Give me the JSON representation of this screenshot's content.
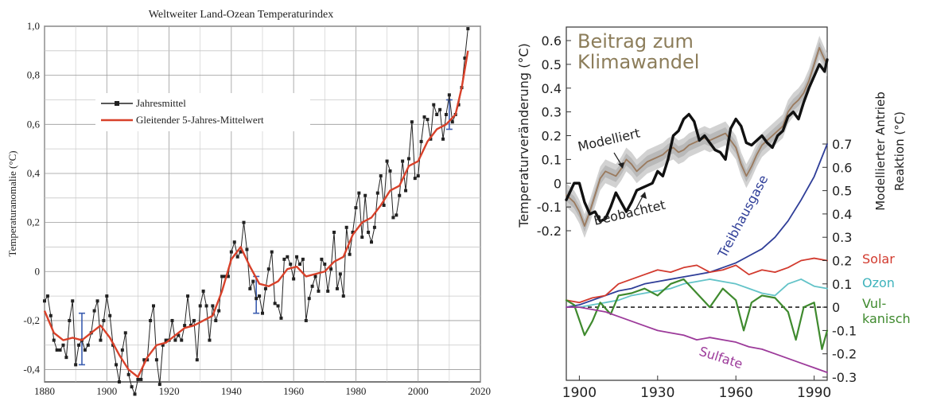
{
  "chart_data": [
    {
      "type": "line",
      "title": "Weltweiter Land-Ozean Temperaturindex",
      "xlabel": "",
      "ylabel": "Temperaturanomalie (°C)",
      "xlim": [
        1880,
        2020
      ],
      "ylim": [
        -0.45,
        1.0
      ],
      "grid": true,
      "legend_position": "top-left",
      "x_ticks": [
        1880,
        1900,
        1920,
        1940,
        1960,
        1980,
        2000,
        2020
      ],
      "x_tick_labels": [
        "1880",
        "1900",
        "1920",
        "1940",
        "1960",
        "1980",
        "2000",
        "2020"
      ],
      "y_ticks": [
        -0.4,
        -0.2,
        0,
        0.2,
        0.4,
        0.6,
        0.8,
        1.0
      ],
      "y_tick_labels": [
        "-0,4",
        "-0,2",
        "0",
        "0,2",
        "0,4",
        "0,6",
        "0,8",
        "1,0"
      ],
      "colors": {
        "annual": "#222222",
        "smooth": "#d8412a",
        "error": "#3b5db0"
      },
      "series": [
        {
          "name": "Jahresmittel",
          "x": [
            1880,
            1881,
            1882,
            1883,
            1884,
            1885,
            1886,
            1887,
            1888,
            1889,
            1890,
            1891,
            1892,
            1893,
            1894,
            1895,
            1896,
            1897,
            1898,
            1899,
            1900,
            1901,
            1902,
            1903,
            1904,
            1905,
            1906,
            1907,
            1908,
            1909,
            1910,
            1911,
            1912,
            1913,
            1914,
            1915,
            1916,
            1917,
            1918,
            1919,
            1920,
            1921,
            1922,
            1923,
            1924,
            1925,
            1926,
            1927,
            1928,
            1929,
            1930,
            1931,
            1932,
            1933,
            1934,
            1935,
            1936,
            1937,
            1938,
            1939,
            1940,
            1941,
            1942,
            1943,
            1944,
            1945,
            1946,
            1947,
            1948,
            1949,
            1950,
            1951,
            1952,
            1953,
            1954,
            1955,
            1956,
            1957,
            1958,
            1959,
            1960,
            1961,
            1962,
            1963,
            1964,
            1965,
            1966,
            1967,
            1968,
            1969,
            1970,
            1971,
            1972,
            1973,
            1974,
            1975,
            1976,
            1977,
            1978,
            1979,
            1980,
            1981,
            1982,
            1983,
            1984,
            1985,
            1986,
            1987,
            1988,
            1989,
            1990,
            1991,
            1992,
            1993,
            1994,
            1995,
            1996,
            1997,
            1998,
            1999,
            2000,
            2001,
            2002,
            2003,
            2004,
            2005,
            2006,
            2007,
            2008,
            2009,
            2010,
            2011,
            2012,
            2013,
            2014,
            2015,
            2016
          ],
          "values": [
            -0.12,
            -0.1,
            -0.18,
            -0.28,
            -0.32,
            -0.32,
            -0.3,
            -0.35,
            -0.2,
            -0.12,
            -0.38,
            -0.3,
            -0.28,
            -0.32,
            -0.3,
            -0.25,
            -0.16,
            -0.12,
            -0.28,
            -0.2,
            -0.1,
            -0.18,
            -0.3,
            -0.38,
            -0.45,
            -0.32,
            -0.25,
            -0.42,
            -0.47,
            -0.5,
            -0.44,
            -0.44,
            -0.36,
            -0.36,
            -0.2,
            -0.14,
            -0.36,
            -0.46,
            -0.3,
            -0.28,
            -0.28,
            -0.2,
            -0.28,
            -0.26,
            -0.28,
            -0.22,
            -0.1,
            -0.22,
            -0.2,
            -0.36,
            -0.14,
            -0.08,
            -0.14,
            -0.28,
            -0.14,
            -0.2,
            -0.16,
            -0.02,
            -0.02,
            -0.02,
            0.08,
            0.12,
            0.06,
            0.08,
            0.2,
            0.09,
            -0.07,
            -0.04,
            -0.11,
            -0.1,
            -0.17,
            -0.07,
            0.01,
            0.08,
            -0.13,
            -0.14,
            -0.19,
            0.05,
            0.06,
            0.03,
            -0.03,
            0.06,
            0.03,
            0.05,
            -0.2,
            -0.11,
            -0.06,
            -0.02,
            -0.08,
            0.05,
            0.03,
            -0.08,
            0.01,
            0.16,
            -0.07,
            -0.01,
            -0.1,
            0.18,
            0.07,
            0.16,
            0.26,
            0.32,
            0.14,
            0.31,
            0.16,
            0.12,
            0.18,
            0.32,
            0.39,
            0.27,
            0.45,
            0.41,
            0.22,
            0.23,
            0.31,
            0.45,
            0.33,
            0.46,
            0.61,
            0.38,
            0.39,
            0.53,
            0.63,
            0.62,
            0.54,
            0.68,
            0.64,
            0.66,
            0.54,
            0.64,
            0.72,
            0.61,
            0.64,
            0.68,
            0.75,
            0.87,
            0.99
          ]
        },
        {
          "name": "Gleitender 5-Jahres-Mittelwert",
          "x": [
            1880,
            1883,
            1886,
            1889,
            1892,
            1895,
            1898,
            1901,
            1904,
            1907,
            1910,
            1913,
            1916,
            1919,
            1922,
            1925,
            1928,
            1931,
            1934,
            1937,
            1940,
            1943,
            1946,
            1949,
            1952,
            1955,
            1958,
            1961,
            1964,
            1967,
            1970,
            1973,
            1976,
            1979,
            1982,
            1985,
            1988,
            1991,
            1994,
            1997,
            2000,
            2003,
            2006,
            2009,
            2012,
            2014,
            2016
          ],
          "values": [
            -0.16,
            -0.25,
            -0.28,
            -0.27,
            -0.28,
            -0.25,
            -0.22,
            -0.27,
            -0.34,
            -0.4,
            -0.43,
            -0.35,
            -0.3,
            -0.29,
            -0.26,
            -0.23,
            -0.22,
            -0.2,
            -0.18,
            -0.08,
            0.05,
            0.1,
            0.02,
            -0.05,
            -0.06,
            -0.04,
            0.01,
            0.02,
            -0.02,
            -0.01,
            0.0,
            0.04,
            0.06,
            0.15,
            0.2,
            0.22,
            0.27,
            0.33,
            0.35,
            0.43,
            0.45,
            0.53,
            0.58,
            0.6,
            0.64,
            0.75,
            0.9
          ]
        }
      ],
      "error_bars": [
        {
          "x": 1892,
          "low": -0.38,
          "high": -0.17
        },
        {
          "x": 1948,
          "low": -0.17,
          "high": -0.02
        },
        {
          "x": 2010,
          "low": 0.58,
          "high": 0.7
        }
      ]
    },
    {
      "type": "line",
      "title": "Beitrag zum Klimawandel",
      "xlabel": "",
      "ylabel": "Temperaturveränderung (°C)",
      "y2label": "Modellierter Antrieb Reaktion (°C)",
      "xlim": [
        1895,
        1995
      ],
      "ylim": [
        -0.2,
        0.6
      ],
      "y2lim": [
        -0.3,
        0.7
      ],
      "grid": false,
      "x_ticks": [
        1900,
        1930,
        1960,
        1990
      ],
      "x_tick_labels": [
        "1900",
        "1930",
        "1960",
        "1990"
      ],
      "y_ticks": [
        -0.2,
        -0.1,
        0,
        0.1,
        0.2,
        0.3,
        0.4,
        0.5,
        0.6
      ],
      "y_tick_labels": [
        "-0.2",
        "-0.1",
        "0",
        "0.1",
        "0.2",
        "0.3",
        "0.4",
        "0.5",
        "0.6"
      ],
      "y2_ticks": [
        -0.3,
        -0.2,
        -0.1,
        0,
        0.1,
        0.2,
        0.3,
        0.4,
        0.5,
        0.6,
        0.7
      ],
      "y2_tick_labels": [
        "-0.3",
        "-0.2",
        "-0.1",
        "0",
        "0.1",
        "0.2",
        "0.3",
        "0.4",
        "0.5",
        "0.6",
        "0.7"
      ],
      "annotations": [
        "Modelliert",
        "Beobachtet"
      ],
      "colors": {
        "title": "#8c7d5a",
        "observed": "#111111",
        "modeled": "#9a7a5e",
        "band": "#bfbfbf",
        "ghg": "#2f3e98",
        "solar": "#d23a2e",
        "ozone": "#63c3c8",
        "volcanic": "#3f8a2e",
        "sulfate": "#9c3a9a"
      },
      "series": [
        {
          "name": "Beobachtet",
          "axis": "left",
          "x": [
            1895,
            1898,
            1900,
            1902,
            1904,
            1906,
            1908,
            1910,
            1912,
            1914,
            1916,
            1918,
            1920,
            1922,
            1924,
            1926,
            1928,
            1930,
            1932,
            1934,
            1936,
            1938,
            1940,
            1942,
            1944,
            1946,
            1948,
            1950,
            1952,
            1954,
            1956,
            1958,
            1960,
            1962,
            1964,
            1966,
            1968,
            1970,
            1972,
            1974,
            1976,
            1978,
            1980,
            1982,
            1984,
            1986,
            1988,
            1990,
            1992,
            1994,
            1995
          ],
          "values": [
            -0.07,
            0.0,
            0.0,
            -0.08,
            -0.13,
            -0.12,
            -0.16,
            -0.15,
            -0.1,
            -0.04,
            -0.08,
            -0.12,
            -0.08,
            -0.03,
            -0.02,
            -0.01,
            0.0,
            0.05,
            0.03,
            0.1,
            0.2,
            0.22,
            0.27,
            0.29,
            0.26,
            0.18,
            0.2,
            0.17,
            0.14,
            0.13,
            0.1,
            0.23,
            0.27,
            0.24,
            0.17,
            0.16,
            0.18,
            0.2,
            0.17,
            0.15,
            0.2,
            0.22,
            0.28,
            0.3,
            0.27,
            0.34,
            0.4,
            0.45,
            0.5,
            0.47,
            0.52
          ]
        },
        {
          "name": "Modelliert",
          "axis": "left",
          "x": [
            1895,
            1898,
            1900,
            1902,
            1904,
            1906,
            1908,
            1910,
            1912,
            1914,
            1916,
            1918,
            1920,
            1922,
            1924,
            1926,
            1928,
            1930,
            1932,
            1934,
            1936,
            1938,
            1940,
            1942,
            1944,
            1946,
            1948,
            1950,
            1952,
            1954,
            1956,
            1958,
            1960,
            1962,
            1964,
            1966,
            1968,
            1970,
            1972,
            1974,
            1976,
            1978,
            1980,
            1982,
            1984,
            1986,
            1988,
            1990,
            1992,
            1994,
            1995
          ],
          "values": [
            -0.05,
            -0.08,
            -0.12,
            -0.18,
            -0.12,
            -0.05,
            0.02,
            0.05,
            0.04,
            0.03,
            0.06,
            0.1,
            0.08,
            0.05,
            0.07,
            0.09,
            0.1,
            0.11,
            0.12,
            0.14,
            0.15,
            0.13,
            0.14,
            0.16,
            0.17,
            0.18,
            0.19,
            0.18,
            0.19,
            0.2,
            0.21,
            0.18,
            0.15,
            0.08,
            0.03,
            0.07,
            0.12,
            0.16,
            0.18,
            0.2,
            0.22,
            0.24,
            0.3,
            0.33,
            0.35,
            0.38,
            0.43,
            0.5,
            0.57,
            0.52,
            0.5
          ]
        },
        {
          "name": "Treibhausgase",
          "axis": "right",
          "x": [
            1895,
            1900,
            1905,
            1910,
            1915,
            1920,
            1925,
            1930,
            1935,
            1940,
            1945,
            1950,
            1955,
            1960,
            1965,
            1970,
            1975,
            1980,
            1985,
            1990,
            1995
          ],
          "values": [
            0.0,
            0.01,
            0.03,
            0.05,
            0.07,
            0.08,
            0.1,
            0.11,
            0.12,
            0.13,
            0.14,
            0.15,
            0.17,
            0.19,
            0.22,
            0.25,
            0.3,
            0.37,
            0.46,
            0.56,
            0.7
          ]
        },
        {
          "name": "Solar",
          "axis": "right",
          "x": [
            1895,
            1900,
            1905,
            1910,
            1915,
            1920,
            1925,
            1930,
            1935,
            1940,
            1945,
            1950,
            1955,
            1960,
            1965,
            1970,
            1975,
            1980,
            1985,
            1990,
            1995
          ],
          "values": [
            0.03,
            0.02,
            0.04,
            0.05,
            0.1,
            0.12,
            0.14,
            0.16,
            0.15,
            0.17,
            0.18,
            0.15,
            0.16,
            0.18,
            0.14,
            0.16,
            0.15,
            0.17,
            0.2,
            0.21,
            0.2
          ]
        },
        {
          "name": "Ozon",
          "axis": "right",
          "x": [
            1895,
            1900,
            1905,
            1910,
            1915,
            1920,
            1925,
            1930,
            1935,
            1940,
            1945,
            1950,
            1955,
            1960,
            1965,
            1970,
            1975,
            1980,
            1985,
            1990,
            1995
          ],
          "values": [
            0.0,
            0.0,
            0.01,
            0.02,
            0.03,
            0.05,
            0.06,
            0.07,
            0.08,
            0.1,
            0.11,
            0.12,
            0.11,
            0.1,
            0.08,
            0.06,
            0.05,
            0.1,
            0.12,
            0.09,
            0.08
          ]
        },
        {
          "name": "Vulkanisch",
          "axis": "right",
          "x": [
            1895,
            1898,
            1902,
            1905,
            1908,
            1912,
            1915,
            1920,
            1925,
            1930,
            1935,
            1940,
            1945,
            1950,
            1955,
            1960,
            1963,
            1966,
            1970,
            1975,
            1980,
            1983,
            1986,
            1990,
            1993,
            1995
          ],
          "values": [
            0.03,
            0.01,
            -0.12,
            -0.06,
            0.02,
            -0.03,
            0.05,
            0.06,
            0.08,
            0.05,
            0.1,
            0.12,
            0.06,
            0.0,
            0.08,
            0.03,
            -0.1,
            0.02,
            0.05,
            0.04,
            -0.02,
            -0.14,
            0.0,
            0.02,
            -0.18,
            -0.1
          ]
        },
        {
          "name": "Sulfate",
          "axis": "right",
          "x": [
            1895,
            1900,
            1905,
            1910,
            1915,
            1920,
            1925,
            1930,
            1935,
            1940,
            1945,
            1950,
            1955,
            1960,
            1965,
            1970,
            1975,
            1980,
            1985,
            1990,
            1995
          ],
          "values": [
            0.0,
            0.0,
            -0.01,
            -0.02,
            -0.04,
            -0.06,
            -0.08,
            -0.1,
            -0.11,
            -0.12,
            -0.14,
            -0.13,
            -0.14,
            -0.15,
            -0.17,
            -0.18,
            -0.2,
            -0.22,
            -0.24,
            -0.26,
            -0.28
          ]
        }
      ],
      "reference_line": {
        "axis": "right",
        "value": 0,
        "style": "dashed"
      }
    }
  ]
}
